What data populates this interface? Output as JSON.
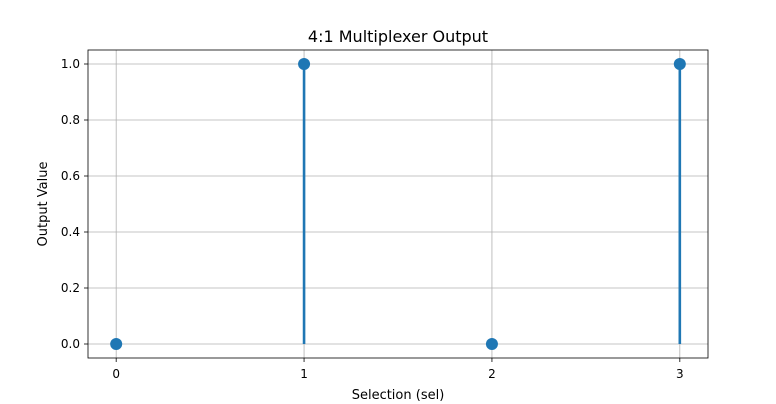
{
  "chart_data": {
    "type": "stem",
    "title": "4:1 Multiplexer Output",
    "xlabel": "Selection (sel)",
    "ylabel": "Output Value",
    "x": [
      0,
      1,
      2,
      3
    ],
    "y": [
      0.0,
      1.0,
      0.0,
      1.0
    ],
    "x_ticks": [
      "0",
      "1",
      "2",
      "3"
    ],
    "y_ticks": [
      "0.0",
      "0.2",
      "0.4",
      "0.6",
      "0.8",
      "1.0"
    ],
    "xlim": [
      -0.15,
      3.15
    ],
    "ylim": [
      -0.05,
      1.05
    ],
    "grid": true,
    "color": "#1f77b4"
  }
}
